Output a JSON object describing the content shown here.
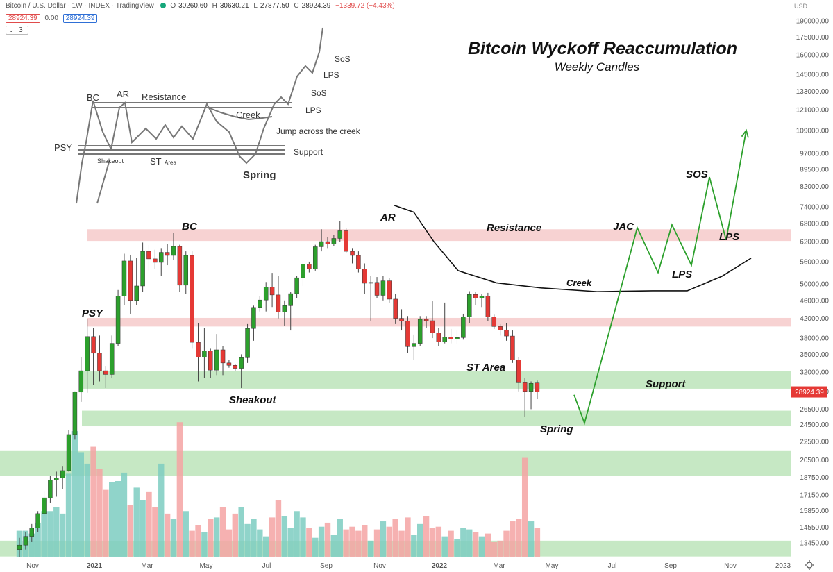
{
  "header": {
    "symbol": "Bitcoin / U.S. Dollar · 1W · INDEX · TradingView",
    "open_label": "O",
    "open": "30260.60",
    "high_label": "H",
    "high": "30630.21",
    "low_label": "L",
    "low": "27877.50",
    "close_label": "C",
    "close": "28924.39",
    "change": "−1339.72 (−4.43%)",
    "bid": "28924.39",
    "spread": "0.00",
    "ask": "28924.39",
    "indicator_count": "3",
    "currency": "USD"
  },
  "chart_data": {
    "type": "candlestick",
    "title": "Bitcoin Wyckoff Reaccumulation",
    "subtitle": "Weekly Candles",
    "y_scale": "log",
    "ylim": [
      12400,
      215000
    ],
    "y_ticks": [
      "13450.00",
      "14550.00",
      "15850.00",
      "17150.00",
      "18750.00",
      "20500.00",
      "22500.00",
      "24500.00",
      "26500.00",
      "29000.00",
      "32000.00",
      "35000.00",
      "38000.00",
      "42000.00",
      "46000.00",
      "50000.00",
      "56000.00",
      "62000.00",
      "68000.00",
      "74000.00",
      "82000.00",
      "89500.00",
      "97000.00",
      "109000.00",
      "121000.00",
      "133000.00",
      "145000.00",
      "160000.00",
      "175000.00",
      "190000.00"
    ],
    "last_price": "28924.39",
    "x_labels": [
      "Nov",
      "2021",
      "Mar",
      "May",
      "Jul",
      "Sep",
      "Nov",
      "2022",
      "Mar",
      "May",
      "Jul",
      "Sep",
      "Nov",
      "2023"
    ],
    "candles": [
      [
        13000,
        13800,
        12500,
        13300
      ],
      [
        13300,
        14200,
        13000,
        13900
      ],
      [
        13900,
        14800,
        13500,
        14500
      ],
      [
        14500,
        15800,
        14200,
        15600
      ],
      [
        15600,
        17500,
        15400,
        16900
      ],
      [
        16900,
        18900,
        16500,
        18500
      ],
      [
        18500,
        19300,
        17000,
        18700
      ],
      [
        18700,
        19800,
        17700,
        19400
      ],
      [
        19400,
        23800,
        19300,
        23300
      ],
      [
        23300,
        29000,
        22700,
        28900
      ],
      [
        28900,
        34500,
        27500,
        32200
      ],
      [
        32200,
        41900,
        28800,
        38300
      ],
      [
        38300,
        40000,
        30000,
        35200
      ],
      [
        35200,
        38500,
        30500,
        32200
      ],
      [
        32200,
        33000,
        29500,
        31600
      ],
      [
        31600,
        38500,
        31000,
        37000
      ],
      [
        37000,
        48500,
        36500,
        47000
      ],
      [
        47000,
        58300,
        45000,
        56200
      ],
      [
        56200,
        58000,
        43000,
        46000
      ],
      [
        46000,
        57000,
        45000,
        49500
      ],
      [
        49500,
        61700,
        48000,
        59000
      ],
      [
        59000,
        61000,
        53500,
        56800
      ],
      [
        56800,
        59500,
        54000,
        55800
      ],
      [
        55800,
        60000,
        52000,
        58700
      ],
      [
        58700,
        61300,
        55000,
        57800
      ],
      [
        57800,
        64800,
        56500,
        60500
      ],
      [
        60500,
        61000,
        48000,
        49700
      ],
      [
        49700,
        59000,
        47500,
        57800
      ],
      [
        57800,
        59000,
        36000,
        37200
      ],
      [
        37200,
        41000,
        30500,
        34500
      ],
      [
        34500,
        40000,
        31000,
        35600
      ],
      [
        35600,
        36000,
        31000,
        32300
      ],
      [
        32300,
        38800,
        31500,
        35800
      ],
      [
        35800,
        36500,
        31500,
        33500
      ],
      [
        33500,
        34000,
        32700,
        33100
      ],
      [
        33100,
        33300,
        32200,
        32600
      ],
      [
        32600,
        35000,
        29500,
        34400
      ],
      [
        34400,
        40800,
        33500,
        39900
      ],
      [
        39900,
        44800,
        37500,
        44400
      ],
      [
        44400,
        47000,
        43500,
        46100
      ],
      [
        46100,
        50500,
        43500,
        49200
      ],
      [
        49200,
        52900,
        44500,
        47300
      ],
      [
        47300,
        52000,
        42000,
        43400
      ],
      [
        43400,
        46000,
        40500,
        44800
      ],
      [
        44800,
        48000,
        39500,
        47600
      ],
      [
        47600,
        52000,
        46500,
        51600
      ],
      [
        51600,
        55900,
        49500,
        55300
      ],
      [
        55300,
        56000,
        53000,
        54000
      ],
      [
        54000,
        61000,
        53500,
        60400
      ],
      [
        60400,
        66000,
        59000,
        62000
      ],
      [
        62000,
        63500,
        60000,
        61200
      ],
      [
        61200,
        64000,
        60500,
        63000
      ],
      [
        63000,
        68900,
        62000,
        65500
      ],
      [
        65500,
        66500,
        58500,
        59000
      ],
      [
        59000,
        60000,
        55500,
        57800
      ],
      [
        57800,
        59000,
        53000,
        54000
      ],
      [
        54000,
        55500,
        47500,
        50200
      ],
      [
        50200,
        52000,
        41500,
        50400
      ],
      [
        50400,
        51800,
        46500,
        47200
      ],
      [
        47200,
        52000,
        46000,
        50800
      ],
      [
        50800,
        51500,
        45500,
        46300
      ],
      [
        46300,
        47500,
        40800,
        42000
      ],
      [
        42000,
        44000,
        39500,
        41400
      ],
      [
        41400,
        42500,
        35300,
        36400
      ],
      [
        36400,
        38700,
        34000,
        37000
      ],
      [
        37000,
        42500,
        36500,
        41800
      ],
      [
        41800,
        42500,
        40000,
        41500
      ],
      [
        41500,
        45800,
        38000,
        39000
      ],
      [
        39000,
        40000,
        36500,
        37300
      ],
      [
        37300,
        45500,
        37000,
        38200
      ],
      [
        38200,
        39800,
        37000,
        37800
      ],
      [
        37800,
        39500,
        36800,
        38100
      ],
      [
        38100,
        43000,
        37700,
        42300
      ],
      [
        42300,
        48200,
        41000,
        47400
      ],
      [
        47400,
        48000,
        45000,
        46500
      ],
      [
        46500,
        47500,
        44500,
        47000
      ],
      [
        47000,
        47800,
        41500,
        42300
      ],
      [
        42300,
        42800,
        39800,
        40300
      ],
      [
        40300,
        40800,
        38500,
        39600
      ],
      [
        39600,
        41000,
        37500,
        38400
      ],
      [
        38400,
        39500,
        33500,
        34000
      ],
      [
        34000,
        34500,
        29000,
        30300
      ],
      [
        30300,
        31000,
        25500,
        29000
      ],
      [
        29000,
        30500,
        26500,
        30200
      ],
      [
        30260.6,
        30630.21,
        27877.5,
        28924.39
      ]
    ],
    "volume": [
      14300,
      14300,
      14100,
      14900,
      15800,
      15800,
      16100,
      15600,
      19100,
      23700,
      21300,
      20100,
      21900,
      19600,
      17600,
      18300,
      18400,
      19200,
      16300,
      17800,
      16700,
      17400,
      16100,
      20100,
      15600,
      15200,
      24800,
      15800,
      14300,
      14700,
      14200,
      15200,
      15300,
      16100,
      14400,
      15600,
      16100,
      14800,
      15200,
      14400,
      13900,
      15300,
      16700,
      15400,
      14500,
      15800,
      15300,
      14500,
      13800,
      14600,
      14900,
      14000,
      15200,
      14400,
      14600,
      14300,
      14700,
      13600,
      14400,
      15000,
      14600,
      15200,
      14300,
      15300,
      14000,
      14800,
      15400,
      14500,
      14600,
      13900,
      14300,
      13700,
      14500,
      14400,
      14200,
      13900,
      14100,
      13500,
      13600,
      14300,
      15000,
      15200,
      20700,
      15000,
      14500
    ],
    "zones": [
      {
        "label": "Resistance",
        "low": 62200,
        "high": 66000,
        "color": "#f4c3c3"
      },
      {
        "label": "",
        "low": 40300,
        "high": 42100,
        "color": "#f4c3c3"
      },
      {
        "label": "Support",
        "low": 29400,
        "high": 32200,
        "color": "#b3e0b0"
      },
      {
        "label": "",
        "low": 24300,
        "high": 26300,
        "color": "#b3e0b0"
      },
      {
        "label": "",
        "low": 18900,
        "high": 21500,
        "color": "#b3e0b0"
      },
      {
        "label": "",
        "low": 12550,
        "high": 13600,
        "color": "#b3e0b0"
      }
    ],
    "annotations": [
      "PSY",
      "BC",
      "Sheakout",
      "AR",
      "ST Area",
      "Spring",
      "Creek",
      "Resistance",
      "Support",
      "JAC",
      "SOS",
      "LPS",
      "LPS"
    ],
    "projection": [
      [
        827,
        28500
      ],
      [
        842,
        24700
      ],
      [
        918,
        66500
      ],
      [
        948,
        53000
      ],
      [
        968,
        67500
      ],
      [
        996,
        55000
      ],
      [
        1022,
        86000
      ],
      [
        1046,
        62500
      ],
      [
        1075,
        109000
      ]
    ],
    "creek": [
      [
        568,
        74500
      ],
      [
        596,
        72000
      ],
      [
        625,
        62000
      ],
      [
        660,
        53500
      ],
      [
        715,
        50300
      ],
      [
        780,
        49000
      ],
      [
        860,
        48100
      ],
      [
        940,
        48300
      ],
      [
        990,
        48300
      ],
      [
        1040,
        52000
      ],
      [
        1082,
        57000
      ]
    ],
    "inset_labels": [
      "BC",
      "AR",
      "Resistance",
      "Creek",
      "PSY",
      "Shakeout",
      "ST",
      "Area",
      "Spring",
      "Support",
      "Jump across the creek",
      "LPS",
      "SoS",
      "LPS",
      "SoS"
    ],
    "colors": {
      "up": "#2ca02c",
      "down": "#e53935",
      "vol_up": "#7ccdc1",
      "vol_down": "#f4a3a3",
      "projection": "#2ca02c"
    }
  }
}
